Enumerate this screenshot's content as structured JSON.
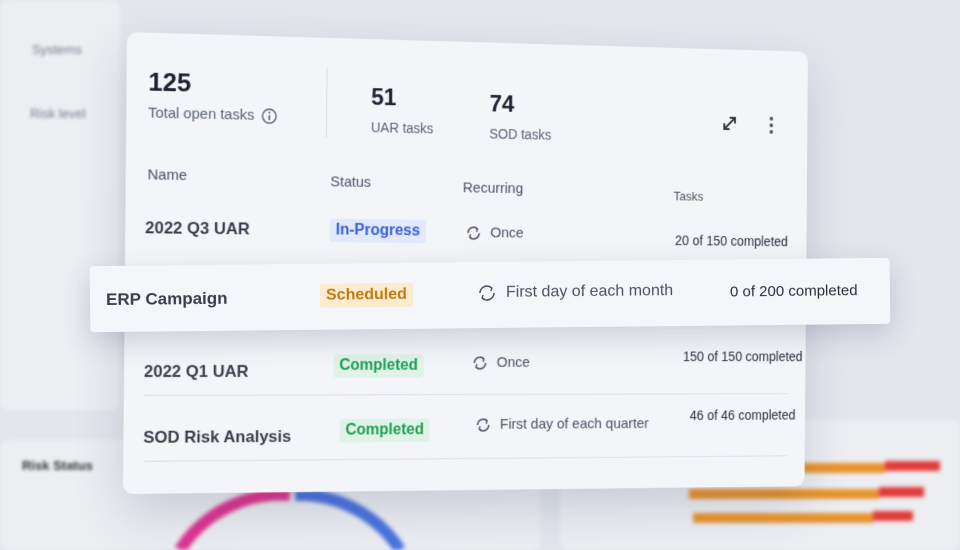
{
  "background": {
    "labels": [
      "Systems",
      "Risk level",
      "Risk Status"
    ]
  },
  "summary": {
    "total": {
      "value": 125,
      "label": "Total open tasks"
    },
    "uar": {
      "value": 51,
      "label": "UAR tasks"
    },
    "sod": {
      "value": 74,
      "label": "SOD tasks"
    }
  },
  "table": {
    "headers": [
      "Name",
      "Status",
      "Recurring",
      "Tasks"
    ],
    "rows": [
      [
        "2022 Q3 UAR",
        "In-Progress",
        "Once",
        "20 of 150 completed"
      ],
      [
        "ERP Campaign",
        "Scheduled",
        "First day of each month",
        "0 of 200 completed"
      ],
      [
        "2022 Q1 UAR",
        "Completed",
        "Once",
        "150 of 150 completed"
      ],
      [
        "SOD Risk Analysis",
        "Completed",
        "First day of each quarter",
        "46 of 46 completed"
      ]
    ]
  }
}
